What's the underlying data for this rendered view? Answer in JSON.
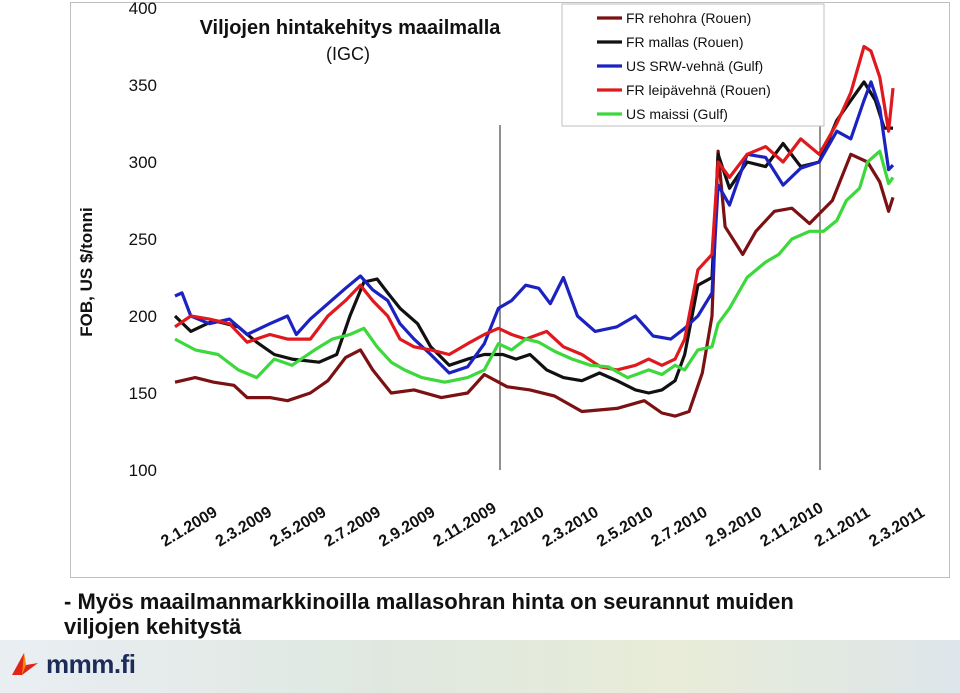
{
  "chart_data": {
    "type": "line",
    "title": "Viljojen hintakehitys maailmalla",
    "subtitle": "(IGC)",
    "ylabel": "FOB, US $/tonni",
    "ylim": [
      100,
      400
    ],
    "yticks": [
      100,
      150,
      200,
      250,
      300,
      350,
      400
    ],
    "x_tick_labels": [
      "2.1.2009",
      "2.3.2009",
      "2.5.2009",
      "2.7.2009",
      "2.9.2009",
      "2.11.2009",
      "2.1.2010",
      "2.3.2010",
      "2.5.2010",
      "2.7.2010",
      "2.9.2010",
      "2.11.2010",
      "2.1.2011",
      "2.3.2011"
    ],
    "legend_position": "top-right",
    "grid": false,
    "vertical_markers": [
      "2.1.2010",
      "2.1.2011"
    ],
    "x_start": "2009-01-02",
    "x_end": "2011-03-30",
    "series": [
      {
        "name": "FR rehohra (Rouen)",
        "color": "#7b1113",
        "points": [
          [
            "2009-01-02",
            157
          ],
          [
            "2009-01-25",
            160
          ],
          [
            "2009-02-15",
            157
          ],
          [
            "2009-03-10",
            155
          ],
          [
            "2009-03-25",
            147
          ],
          [
            "2009-04-20",
            147
          ],
          [
            "2009-05-10",
            145
          ],
          [
            "2009-06-05",
            150
          ],
          [
            "2009-06-25",
            158
          ],
          [
            "2009-07-15",
            173
          ],
          [
            "2009-08-01",
            178
          ],
          [
            "2009-08-15",
            165
          ],
          [
            "2009-09-05",
            150
          ],
          [
            "2009-10-01",
            152
          ],
          [
            "2009-11-01",
            147
          ],
          [
            "2009-12-01",
            150
          ],
          [
            "2009-12-20",
            162
          ],
          [
            "2010-01-15",
            154
          ],
          [
            "2010-02-10",
            152
          ],
          [
            "2010-03-10",
            148
          ],
          [
            "2010-04-10",
            138
          ],
          [
            "2010-05-20",
            140
          ],
          [
            "2010-06-20",
            145
          ],
          [
            "2010-07-10",
            137
          ],
          [
            "2010-07-25",
            135
          ],
          [
            "2010-08-10",
            138
          ],
          [
            "2010-08-25",
            163
          ],
          [
            "2010-09-05",
            200
          ],
          [
            "2010-09-12",
            307
          ],
          [
            "2010-09-20",
            258
          ],
          [
            "2010-10-10",
            240
          ],
          [
            "2010-10-25",
            255
          ],
          [
            "2010-11-15",
            268
          ],
          [
            "2010-12-05",
            270
          ],
          [
            "2010-12-25",
            260
          ],
          [
            "2011-01-20",
            275
          ],
          [
            "2011-02-10",
            305
          ],
          [
            "2011-03-01",
            300
          ],
          [
            "2011-03-15",
            287
          ],
          [
            "2011-03-25",
            268
          ],
          [
            "2011-03-30",
            277
          ]
        ]
      },
      {
        "name": "FR mallas (Rouen)",
        "color": "#111111",
        "points": [
          [
            "2009-01-02",
            200
          ],
          [
            "2009-01-20",
            190
          ],
          [
            "2009-02-15",
            197
          ],
          [
            "2009-03-15",
            193
          ],
          [
            "2009-04-05",
            183
          ],
          [
            "2009-04-25",
            175
          ],
          [
            "2009-05-15",
            172
          ],
          [
            "2009-06-15",
            170
          ],
          [
            "2009-07-05",
            175
          ],
          [
            "2009-07-20",
            200
          ],
          [
            "2009-08-05",
            222
          ],
          [
            "2009-08-20",
            224
          ],
          [
            "2009-09-01",
            215
          ],
          [
            "2009-09-15",
            205
          ],
          [
            "2009-10-05",
            195
          ],
          [
            "2009-10-20",
            180
          ],
          [
            "2009-11-10",
            168
          ],
          [
            "2009-12-01",
            172
          ],
          [
            "2009-12-20",
            175
          ],
          [
            "2010-01-10",
            175
          ],
          [
            "2010-01-25",
            172
          ],
          [
            "2010-02-10",
            175
          ],
          [
            "2010-03-01",
            165
          ],
          [
            "2010-03-20",
            160
          ],
          [
            "2010-04-10",
            158
          ],
          [
            "2010-04-30",
            163
          ],
          [
            "2010-05-20",
            158
          ],
          [
            "2010-06-10",
            152
          ],
          [
            "2010-06-25",
            150
          ],
          [
            "2010-07-10",
            152
          ],
          [
            "2010-07-25",
            158
          ],
          [
            "2010-08-05",
            175
          ],
          [
            "2010-08-20",
            220
          ],
          [
            "2010-09-05",
            225
          ],
          [
            "2010-09-12",
            305
          ],
          [
            "2010-09-25",
            283
          ],
          [
            "2010-10-15",
            300
          ],
          [
            "2010-11-05",
            297
          ],
          [
            "2010-11-25",
            312
          ],
          [
            "2010-12-15",
            297
          ],
          [
            "2011-01-05",
            300
          ],
          [
            "2011-01-25",
            327
          ],
          [
            "2011-02-10",
            340
          ],
          [
            "2011-02-25",
            352
          ],
          [
            "2011-03-10",
            340
          ],
          [
            "2011-03-20",
            322
          ],
          [
            "2011-03-30",
            322
          ]
        ]
      },
      {
        "name": "US SRW-vehnä (Gulf)",
        "color": "#1c22c0",
        "points": [
          [
            "2009-01-02",
            213
          ],
          [
            "2009-01-10",
            215
          ],
          [
            "2009-01-20",
            200
          ],
          [
            "2009-02-10",
            195
          ],
          [
            "2009-03-05",
            198
          ],
          [
            "2009-03-25",
            188
          ],
          [
            "2009-04-20",
            195
          ],
          [
            "2009-05-10",
            200
          ],
          [
            "2009-05-20",
            188
          ],
          [
            "2009-06-05",
            198
          ],
          [
            "2009-06-25",
            208
          ],
          [
            "2009-07-15",
            218
          ],
          [
            "2009-08-01",
            226
          ],
          [
            "2009-08-15",
            217
          ],
          [
            "2009-09-01",
            210
          ],
          [
            "2009-09-15",
            195
          ],
          [
            "2009-10-01",
            185
          ],
          [
            "2009-10-20",
            175
          ],
          [
            "2009-11-10",
            163
          ],
          [
            "2009-12-01",
            167
          ],
          [
            "2009-12-20",
            182
          ],
          [
            "2010-01-05",
            205
          ],
          [
            "2010-01-20",
            210
          ],
          [
            "2010-02-05",
            220
          ],
          [
            "2010-02-20",
            218
          ],
          [
            "2010-03-05",
            208
          ],
          [
            "2010-03-20",
            225
          ],
          [
            "2010-04-05",
            200
          ],
          [
            "2010-04-25",
            190
          ],
          [
            "2010-05-20",
            193
          ],
          [
            "2010-06-10",
            200
          ],
          [
            "2010-06-30",
            187
          ],
          [
            "2010-07-20",
            185
          ],
          [
            "2010-08-05",
            192
          ],
          [
            "2010-08-20",
            200
          ],
          [
            "2010-09-05",
            215
          ],
          [
            "2010-09-12",
            285
          ],
          [
            "2010-09-25",
            272
          ],
          [
            "2010-10-15",
            305
          ],
          [
            "2010-11-05",
            303
          ],
          [
            "2010-11-25",
            285
          ],
          [
            "2010-12-15",
            296
          ],
          [
            "2011-01-05",
            300
          ],
          [
            "2011-01-25",
            320
          ],
          [
            "2011-02-10",
            315
          ],
          [
            "2011-02-25",
            340
          ],
          [
            "2011-03-05",
            352
          ],
          [
            "2011-03-15",
            335
          ],
          [
            "2011-03-25",
            295
          ],
          [
            "2011-03-30",
            298
          ]
        ]
      },
      {
        "name": "FR leipävehnä (Rouen)",
        "color": "#e0191e",
        "points": [
          [
            "2009-01-02",
            193
          ],
          [
            "2009-01-20",
            200
          ],
          [
            "2009-02-10",
            198
          ],
          [
            "2009-03-05",
            195
          ],
          [
            "2009-03-25",
            183
          ],
          [
            "2009-04-20",
            188
          ],
          [
            "2009-05-10",
            185
          ],
          [
            "2009-06-05",
            185
          ],
          [
            "2009-06-25",
            200
          ],
          [
            "2009-07-15",
            210
          ],
          [
            "2009-08-01",
            220
          ],
          [
            "2009-08-15",
            210
          ],
          [
            "2009-09-01",
            200
          ],
          [
            "2009-09-15",
            185
          ],
          [
            "2009-10-01",
            180
          ],
          [
            "2009-10-20",
            178
          ],
          [
            "2009-11-10",
            175
          ],
          [
            "2009-12-01",
            182
          ],
          [
            "2009-12-20",
            188
          ],
          [
            "2010-01-05",
            192
          ],
          [
            "2010-01-20",
            188
          ],
          [
            "2010-02-05",
            185
          ],
          [
            "2010-03-01",
            190
          ],
          [
            "2010-03-20",
            180
          ],
          [
            "2010-04-10",
            175
          ],
          [
            "2010-05-01",
            167
          ],
          [
            "2010-05-20",
            165
          ],
          [
            "2010-06-10",
            168
          ],
          [
            "2010-06-25",
            172
          ],
          [
            "2010-07-10",
            168
          ],
          [
            "2010-07-25",
            172
          ],
          [
            "2010-08-05",
            185
          ],
          [
            "2010-08-20",
            230
          ],
          [
            "2010-09-05",
            240
          ],
          [
            "2010-09-12",
            300
          ],
          [
            "2010-09-25",
            290
          ],
          [
            "2010-10-15",
            305
          ],
          [
            "2010-11-05",
            310
          ],
          [
            "2010-11-25",
            300
          ],
          [
            "2010-12-15",
            315
          ],
          [
            "2011-01-05",
            305
          ],
          [
            "2011-01-25",
            325
          ],
          [
            "2011-02-10",
            345
          ],
          [
            "2011-02-25",
            375
          ],
          [
            "2011-03-05",
            372
          ],
          [
            "2011-03-15",
            355
          ],
          [
            "2011-03-25",
            320
          ],
          [
            "2011-03-30",
            348
          ]
        ]
      },
      {
        "name": "US maissi (Gulf)",
        "color": "#3cd83c",
        "points": [
          [
            "2009-01-02",
            185
          ],
          [
            "2009-01-25",
            178
          ],
          [
            "2009-02-20",
            175
          ],
          [
            "2009-03-15",
            165
          ],
          [
            "2009-04-05",
            160
          ],
          [
            "2009-04-25",
            172
          ],
          [
            "2009-05-15",
            168
          ],
          [
            "2009-06-10",
            178
          ],
          [
            "2009-06-30",
            185
          ],
          [
            "2009-07-20",
            188
          ],
          [
            "2009-08-05",
            192
          ],
          [
            "2009-08-20",
            180
          ],
          [
            "2009-09-05",
            170
          ],
          [
            "2009-09-20",
            165
          ],
          [
            "2009-10-10",
            160
          ],
          [
            "2009-11-05",
            157
          ],
          [
            "2009-12-01",
            160
          ],
          [
            "2009-12-20",
            165
          ],
          [
            "2010-01-05",
            182
          ],
          [
            "2010-01-20",
            178
          ],
          [
            "2010-02-05",
            185
          ],
          [
            "2010-02-20",
            183
          ],
          [
            "2010-03-10",
            177
          ],
          [
            "2010-03-30",
            172
          ],
          [
            "2010-04-20",
            168
          ],
          [
            "2010-05-10",
            167
          ],
          [
            "2010-06-01",
            160
          ],
          [
            "2010-06-25",
            165
          ],
          [
            "2010-07-10",
            162
          ],
          [
            "2010-07-25",
            168
          ],
          [
            "2010-08-05",
            165
          ],
          [
            "2010-08-20",
            178
          ],
          [
            "2010-09-05",
            180
          ],
          [
            "2010-09-12",
            195
          ],
          [
            "2010-09-25",
            205
          ],
          [
            "2010-10-15",
            225
          ],
          [
            "2010-11-05",
            235
          ],
          [
            "2010-11-20",
            240
          ],
          [
            "2010-12-05",
            250
          ],
          [
            "2010-12-25",
            255
          ],
          [
            "2011-01-10",
            255
          ],
          [
            "2011-01-25",
            262
          ],
          [
            "2011-02-05",
            275
          ],
          [
            "2011-02-20",
            283
          ],
          [
            "2011-03-01",
            300
          ],
          [
            "2011-03-15",
            307
          ],
          [
            "2011-03-25",
            286
          ],
          [
            "2011-03-30",
            290
          ]
        ]
      }
    ]
  },
  "caption": {
    "line1": "- Myös maailmanmarkkinoilla mallasohran hinta on seurannut muiden",
    "line2": "viljojen kehitystä"
  },
  "logo": {
    "text": "mmm.fi",
    "icon": "ministry-leaf-icon",
    "color": "#1b2b5a"
  }
}
